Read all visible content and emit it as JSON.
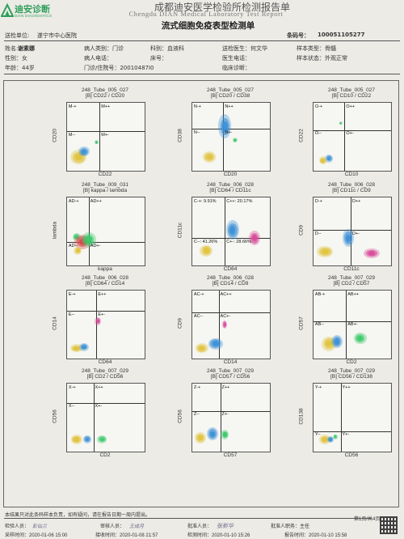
{
  "logo": {
    "cn": "迪安诊断",
    "en": "DIAN DIAGNOSTICS"
  },
  "header": {
    "title_cn": "成都迪安医学检验所检测报告单",
    "title_en": "Chengdu DIAN Medical Laboratory Test Report",
    "subtitle": "流式细胞免疫表型检测单"
  },
  "info": {
    "unit_label": "送检单位:",
    "unit_value": "遂宁市中心医院",
    "barcode_label": "条码号：",
    "barcode_value": "100051105277",
    "name_label": "姓名:",
    "name_value": "谢素娜",
    "patient_type": "病人类别：门诊",
    "dept": "科别：血液科",
    "doctor": "送检医生：何文华",
    "sample_type": "样本类型：骨髓",
    "sex": "性别：女",
    "phone": "病人电话：",
    "bed": "床号：",
    "remark": "医生电话：",
    "sample_status": "样本状态：外观正常",
    "age": "年龄：44岁",
    "visit": "门诊/住院号：20010487I0",
    "diagnosis": "临床诊断："
  },
  "panels": [
    {
      "h1": "248_Tube_005_027",
      "h2": "[B] CD22 / CD20",
      "x": "CD22",
      "y": "CD20",
      "q": [
        "M-+",
        "M++",
        "M--",
        "M+-"
      ]
    },
    {
      "h1": "248_Tube_005_027",
      "h2": "[B] CD20 / CD38",
      "x": "CD20",
      "y": "CD38",
      "q": [
        "N-+",
        "N++",
        "N--",
        "N+-"
      ]
    },
    {
      "h1": "248_Tube_005_027",
      "h2": "[B] CD10 / CD22",
      "x": "CD10",
      "y": "CD22",
      "q": [
        "O-+",
        "O++",
        "O--",
        "O+-"
      ]
    },
    {
      "h1": "248_Tube_009_031",
      "h2": "[B] kappa / lambda",
      "x": "kappa",
      "y": "lambda",
      "q": [
        "AD-+",
        "AD++",
        "AD--",
        "AD+-"
      ]
    },
    {
      "h1": "248_Tube_006_028",
      "h2": "[B] CD64 / CD11c",
      "x": "CD64",
      "y": "CD11c",
      "q": [
        "C-+: 9.91%",
        "C++: 20.17%",
        "C--: 41.26%",
        "C+-: 28.66%"
      ]
    },
    {
      "h1": "248_Tube_006_028",
      "h2": "[B] CD11c / CD9",
      "x": "CD11c",
      "y": "CD9",
      "q": [
        "D-+",
        "D++",
        "D--",
        "D+-"
      ]
    },
    {
      "h1": "248_Tube_006_028",
      "h2": "[B] CD64 / CD14",
      "x": "CD64",
      "y": "CD14",
      "q": [
        "E-+",
        "E++",
        "E--",
        "E+-"
      ]
    },
    {
      "h1": "248_Tube_006_028",
      "h2": "[B] CD14 / CD9",
      "x": "CD14",
      "y": "CD9",
      "q": [
        "AC-+",
        "AC++",
        "AC--",
        "AC+-"
      ]
    },
    {
      "h1": "248_Tube_007_029",
      "h2": "[B] CD2 / CD57",
      "x": "CD2",
      "y": "CD57",
      "q": [
        "AB-+",
        "AB++",
        "AB--",
        "AB+-"
      ]
    },
    {
      "h1": "248_Tube_007_029",
      "h2": "[B] CD2 / CD56",
      "x": "CD2",
      "y": "CD56",
      "q": [
        "X-+",
        "X++",
        "X--",
        "X+-"
      ]
    },
    {
      "h1": "248_Tube_007_029",
      "h2": "[B] CD57 / CD56",
      "x": "CD57",
      "y": "CD56",
      "q": [
        "Z-+",
        "Z++",
        "Z--",
        "Z+-"
      ]
    },
    {
      "h1": "248_Tube_007_029",
      "h2": "[B] CD56 / CD138",
      "x": "CD56",
      "y": "CD138",
      "q": [
        "Y-+",
        "Y++",
        "Y--",
        "Y+-"
      ]
    }
  ],
  "footer": {
    "note": "本结果只对此条码样本负责，如有疑问，请在报告日期一周内提出。",
    "page": "第1页/共4页",
    "inspector": "检验人员：",
    "inspector_sign": "彭仙兰",
    "reviewer": "审核人员：",
    "reviewer_sign": "王成月",
    "approver": "批准人员：",
    "approver_sign": "张新华",
    "approver_title": "批准人职务：主任",
    "collect_time": "采样时间：2020-01-06 15:00",
    "receive_time": "接收时间：2020-01-08 21:57",
    "test_time": "检测时间：2020-01-10 15:26",
    "report_time": "报告时间：2020-01-10 15:58"
  }
}
